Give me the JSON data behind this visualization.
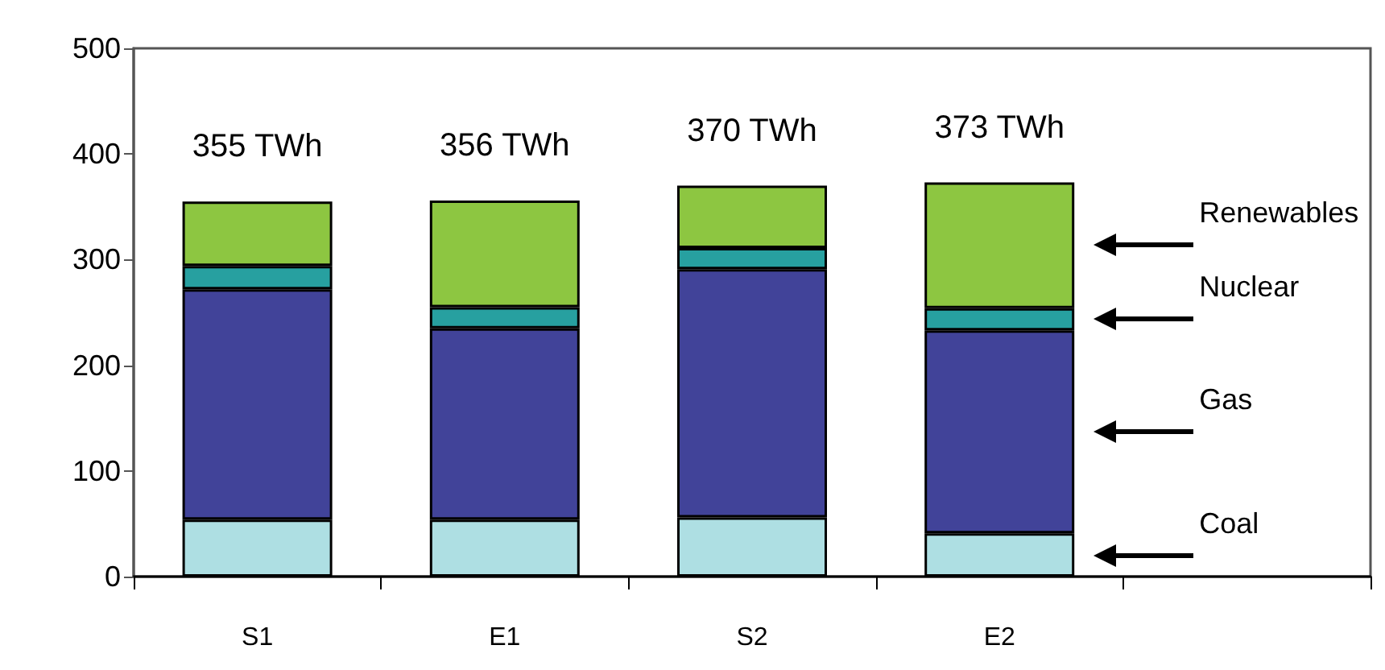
{
  "chart_data": {
    "type": "bar",
    "stacked": true,
    "categories": [
      "S1",
      "E1",
      "S2",
      "E2",
      null
    ],
    "series": [
      {
        "name": "Coal",
        "color": "#aedfe3",
        "values": [
          54,
          54,
          56,
          41,
          null
        ]
      },
      {
        "name": "Gas",
        "color": "#414399",
        "values": [
          218,
          181,
          235,
          192,
          null
        ]
      },
      {
        "name": "Nuclear",
        "color": "#27a0a0",
        "values": [
          22,
          20,
          20,
          21,
          null
        ]
      },
      {
        "name": "Renewables",
        "color": "#8dc641",
        "values": [
          61,
          101,
          59,
          119,
          null
        ]
      }
    ],
    "totals": [
      "355 TWh",
      "356 TWh",
      "370 TWh",
      "373 TWh",
      null
    ],
    "ylim": [
      0,
      500
    ],
    "yticks": [
      0,
      100,
      200,
      300,
      400,
      500
    ],
    "grid": false,
    "legend": "right"
  }
}
